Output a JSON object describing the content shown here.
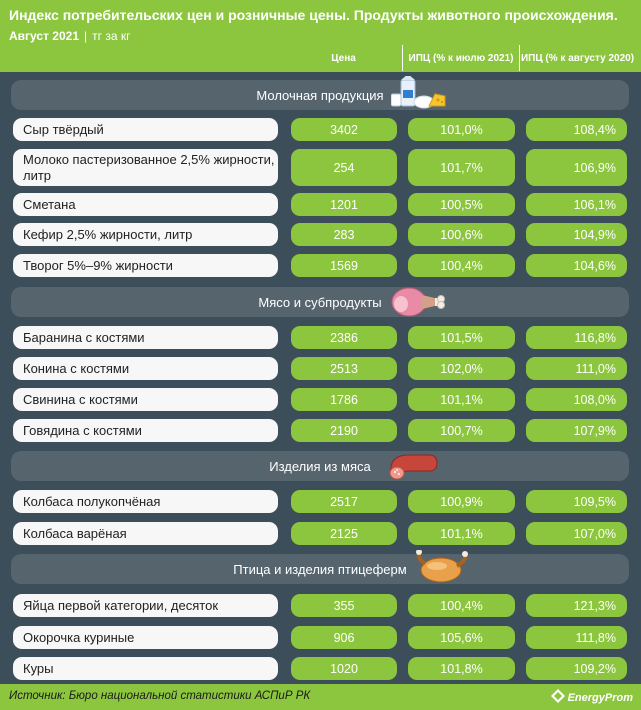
{
  "header": {
    "title": "Индекс потребительских цен и розничные цены. Продукты животного происхождения.",
    "period": "Август 2021",
    "separator": "|",
    "unit": "тг за кг"
  },
  "columns": {
    "price": "Цена",
    "ipc_month": "ИПЦ (% к июлю 2021)",
    "ipc_year": "ИПЦ (% к августу 2020)"
  },
  "categories": [
    {
      "name": "Молочная продукция",
      "icon": "dairy-icon",
      "items": [
        {
          "name": "Сыр твёрдый",
          "price": "3402",
          "ipc_month": "101,0%",
          "ipc_year": "108,4%"
        },
        {
          "name": "Молоко пастеризованное 2,5% жирности, литр",
          "price": "254",
          "ipc_month": "101,7%",
          "ipc_year": "106,9%"
        },
        {
          "name": "Сметана",
          "price": "1201",
          "ipc_month": "100,5%",
          "ipc_year": "106,1%"
        },
        {
          "name": "Кефир 2,5% жирности, литр",
          "price": "283",
          "ipc_month": "100,6%",
          "ipc_year": "104,9%"
        },
        {
          "name": "Творог 5%–9% жирности",
          "price": "1569",
          "ipc_month": "100,4%",
          "ipc_year": "104,6%"
        }
      ]
    },
    {
      "name": "Мясо и субпродукты",
      "icon": "ham-leg-icon",
      "items": [
        {
          "name": "Баранина с костями",
          "price": "2386",
          "ipc_month": "101,5%",
          "ipc_year": "116,8%"
        },
        {
          "name": "Конина с костями",
          "price": "2513",
          "ipc_month": "102,0%",
          "ipc_year": "111,0%"
        },
        {
          "name": "Свинина с костями",
          "price": "1786",
          "ipc_month": "101,1%",
          "ipc_year": "108,0%"
        },
        {
          "name": "Говядина с костями",
          "price": "2190",
          "ipc_month": "100,7%",
          "ipc_year": "107,9%"
        }
      ]
    },
    {
      "name": "Изделия из мяса",
      "icon": "sausage-icon",
      "items": [
        {
          "name": "Колбаса полукопчёная",
          "price": "2517",
          "ipc_month": "100,9%",
          "ipc_year": "109,5%"
        },
        {
          "name": "Колбаса варёная",
          "price": "2125",
          "ipc_month": "101,1%",
          "ipc_year": "107,0%"
        }
      ]
    },
    {
      "name": "Птица и изделия птицеферм",
      "icon": "roast-chicken-icon",
      "items": [
        {
          "name": "Яйца первой категории, десяток",
          "price": "355",
          "ipc_month": "100,4%",
          "ipc_year": "121,3%"
        },
        {
          "name": "Окорочка куриные",
          "price": "906",
          "ipc_month": "105,6%",
          "ipc_year": "111,8%"
        },
        {
          "name": "Куры",
          "price": "1020",
          "ipc_month": "101,8%",
          "ipc_year": "109,2%"
        }
      ]
    }
  ],
  "footer": {
    "source": "Источник: Бюро национальной статистики АСПиР РК",
    "brand": "EnergyProm",
    "brand_icon": "energyprom-logo-icon"
  },
  "colors": {
    "accent_green": "#8cc63f",
    "table_background": "#3c4e5a",
    "category_band": "#56646e",
    "name_cell": "#f7f7f7"
  }
}
